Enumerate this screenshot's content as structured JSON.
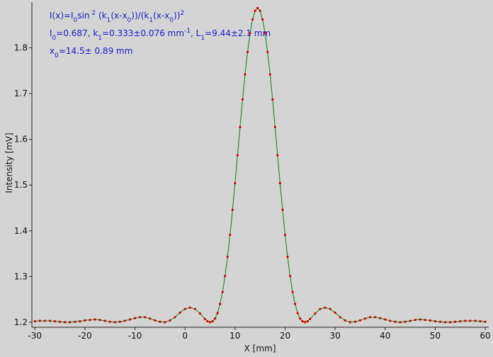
{
  "chart_data": {
    "type": "scatter",
    "x_label": "X [mm]",
    "y_label": "Intensity [mV]",
    "annotation_lines": [
      [
        {
          "text": "I(x)=I"
        },
        {
          "text": "0",
          "script": "sub"
        },
        {
          "text": "sin"
        },
        {
          "text": " 2",
          "script": "sup"
        },
        {
          "text": " (k"
        },
        {
          "text": "1",
          "script": "sub"
        },
        {
          "text": "(x-x"
        },
        {
          "text": "0",
          "script": "sub"
        },
        {
          "text": "))/(k"
        },
        {
          "text": "1",
          "script": "sub"
        },
        {
          "text": "(x-x"
        },
        {
          "text": "0",
          "script": "sub"
        },
        {
          "text": "))"
        },
        {
          "text": "2",
          "script": "sup"
        }
      ],
      [
        {
          "text": "I"
        },
        {
          "text": "0",
          "script": "sub"
        },
        {
          "text": "=0.687,  k"
        },
        {
          "text": "1",
          "script": "sub"
        },
        {
          "text": "=0.333±0.076 mm"
        },
        {
          "text": "-1",
          "script": "sup"
        },
        {
          "text": ",   L"
        },
        {
          "text": "1",
          "script": "sub"
        },
        {
          "text": "=9.44±2.1 mm"
        }
      ],
      [
        {
          "text": "x"
        },
        {
          "text": "0",
          "script": "sub"
        },
        {
          "text": "=14.5±  0.89 mm"
        }
      ]
    ],
    "xlim": [
      -30.6,
      60.7
    ],
    "ylim": [
      1.189,
      1.9
    ],
    "xticks": [
      -30,
      -20,
      -10,
      0,
      10,
      20,
      30,
      40,
      50,
      60
    ],
    "yticks": [
      1.2,
      1.3,
      1.4,
      1.5,
      1.6,
      1.7,
      1.8
    ],
    "line_color": "#2e8b2e",
    "point_color": "#d00000",
    "x": [
      -30,
      -29,
      -28,
      -27,
      -26,
      -25,
      -24,
      -23,
      -22,
      -21,
      -20,
      -19,
      -18,
      -17,
      -16,
      -15,
      -14,
      -13,
      -12,
      -11,
      -10,
      -9,
      -8,
      -7,
      -6,
      -5,
      -4,
      -3,
      -2,
      -1,
      0,
      1,
      2,
      3,
      4,
      4.5,
      5,
      5.5,
      6,
      6.5,
      7,
      7.5,
      8,
      8.5,
      9,
      9.5,
      10,
      10.5,
      11,
      11.5,
      12,
      12.5,
      13,
      13.5,
      14,
      14.5,
      15,
      15.5,
      16,
      16.5,
      17,
      17.5,
      18,
      18.5,
      19,
      19.5,
      20,
      20.5,
      21,
      21.5,
      22,
      22.5,
      23,
      23.5,
      24,
      24.5,
      25,
      26,
      27,
      28,
      29,
      30,
      31,
      32,
      33,
      34,
      35,
      36,
      37,
      38,
      39,
      40,
      41,
      42,
      43,
      44,
      45,
      46,
      47,
      48,
      49,
      50,
      51,
      52,
      53,
      54,
      55,
      56,
      57,
      58,
      59,
      60
    ],
    "values": [
      1.202,
      1.203,
      1.203,
      1.203,
      1.202,
      1.201,
      1.2,
      1.2,
      1.201,
      1.202,
      1.204,
      1.205,
      1.206,
      1.205,
      1.203,
      1.201,
      1.2,
      1.201,
      1.203,
      1.206,
      1.209,
      1.211,
      1.211,
      1.208,
      1.204,
      1.201,
      1.2,
      1.204,
      1.211,
      1.221,
      1.229,
      1.232,
      1.229,
      1.219,
      1.207,
      1.202,
      1.2,
      1.202,
      1.208,
      1.22,
      1.24,
      1.266,
      1.301,
      1.343,
      1.391,
      1.446,
      1.504,
      1.565,
      1.627,
      1.687,
      1.742,
      1.791,
      1.832,
      1.862,
      1.881,
      1.887,
      1.881,
      1.862,
      1.832,
      1.791,
      1.742,
      1.687,
      1.627,
      1.565,
      1.504,
      1.446,
      1.391,
      1.343,
      1.301,
      1.266,
      1.24,
      1.22,
      1.208,
      1.202,
      1.2,
      1.202,
      1.207,
      1.219,
      1.229,
      1.232,
      1.229,
      1.221,
      1.211,
      1.204,
      1.2,
      1.201,
      1.204,
      1.208,
      1.211,
      1.211,
      1.209,
      1.206,
      1.203,
      1.201,
      1.2,
      1.201,
      1.203,
      1.205,
      1.206,
      1.205,
      1.204,
      1.202,
      1.201,
      1.2,
      1.2,
      1.201,
      1.202,
      1.203,
      1.203,
      1.203,
      1.202,
      1.201
    ]
  }
}
